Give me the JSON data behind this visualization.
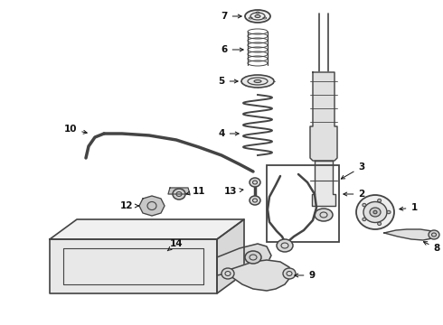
{
  "bg_color": "#ffffff",
  "line_color": "#444444",
  "dark_color": "#111111",
  "fig_width": 4.9,
  "fig_height": 3.6,
  "dpi": 100,
  "xlim": [
    0,
    490
  ],
  "ylim": [
    0,
    360
  ]
}
